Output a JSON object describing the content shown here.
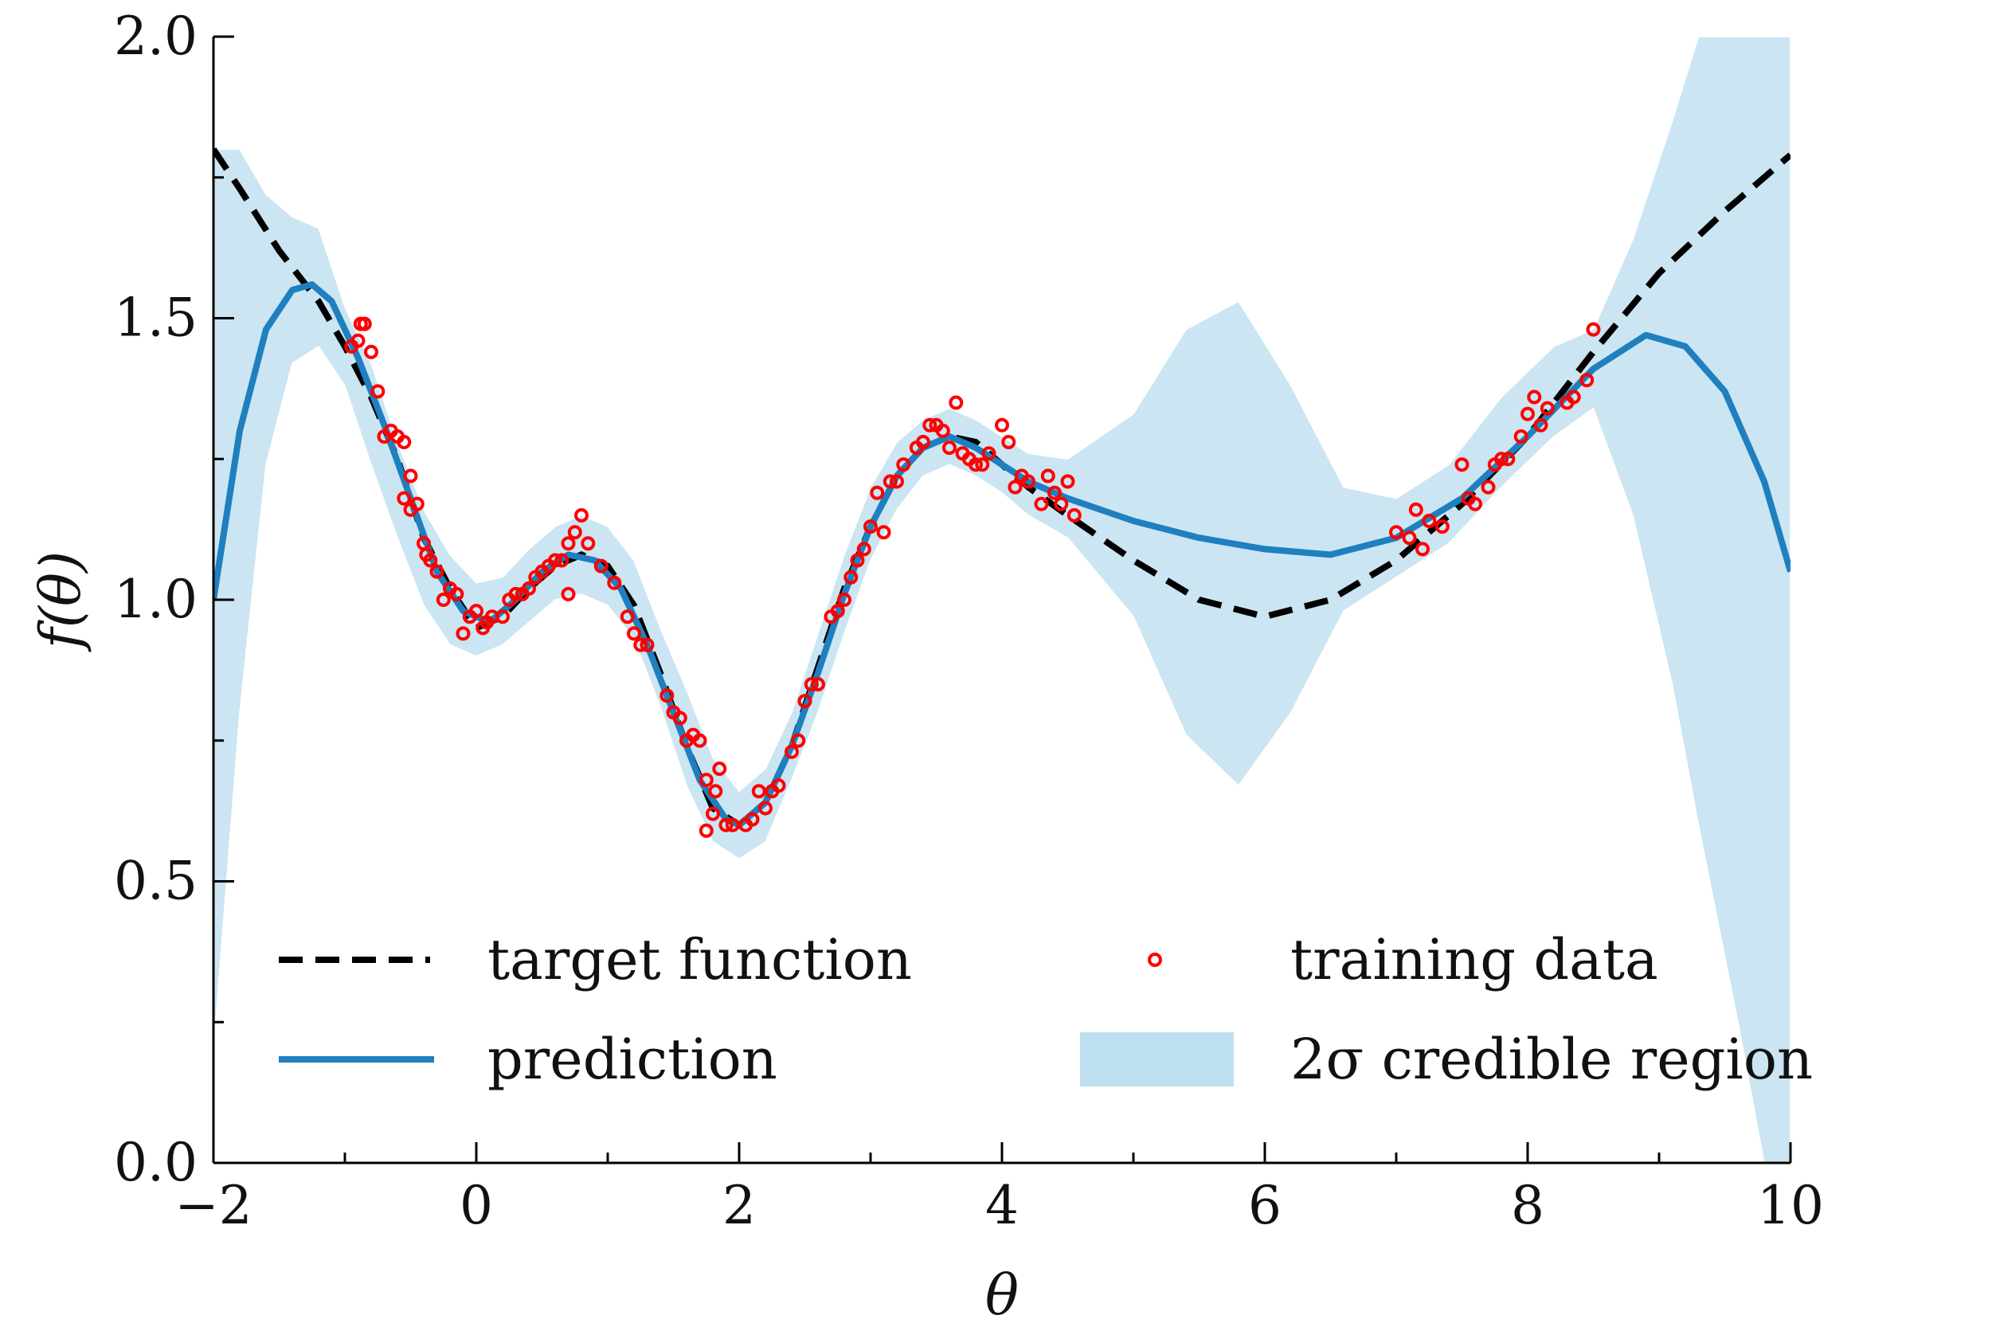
{
  "chart_data": {
    "type": "line",
    "title": "",
    "xlabel": "θ",
    "ylabel": "f(θ)",
    "xlim": [
      -2,
      10
    ],
    "ylim": [
      0,
      2
    ],
    "xticks": [
      -2,
      0,
      2,
      4,
      6,
      8,
      10
    ],
    "xtick_labels": [
      "−2",
      "0",
      "2",
      "4",
      "6",
      "8",
      "10"
    ],
    "yticks": [
      0,
      0.5,
      1,
      1.5,
      2
    ],
    "ytick_labels": [
      "0.0",
      "0.5",
      "1.0",
      "1.5",
      "2.0"
    ],
    "grid": false,
    "legend_position": "lower-center",
    "colors": {
      "target": "#000000",
      "prediction": "#1f7fbf",
      "training": "#ff0000",
      "band": "#a8d4ea"
    },
    "series": [
      {
        "name": "target function",
        "style": "dashed",
        "points": [
          [
            -2.0,
            1.8
          ],
          [
            -1.8,
            1.73
          ],
          [
            -1.5,
            1.62
          ],
          [
            -1.2,
            1.53
          ],
          [
            -1.0,
            1.45
          ],
          [
            -0.8,
            1.36
          ],
          [
            -0.6,
            1.25
          ],
          [
            -0.4,
            1.11
          ],
          [
            -0.2,
            1.02
          ],
          [
            0.0,
            0.95
          ],
          [
            0.2,
            0.97
          ],
          [
            0.4,
            1.02
          ],
          [
            0.6,
            1.06
          ],
          [
            0.8,
            1.08
          ],
          [
            1.0,
            1.06
          ],
          [
            1.2,
            0.99
          ],
          [
            1.4,
            0.87
          ],
          [
            1.6,
            0.74
          ],
          [
            1.8,
            0.63
          ],
          [
            2.0,
            0.6
          ],
          [
            2.2,
            0.64
          ],
          [
            2.4,
            0.74
          ],
          [
            2.6,
            0.88
          ],
          [
            2.8,
            1.02
          ],
          [
            3.0,
            1.13
          ],
          [
            3.2,
            1.22
          ],
          [
            3.4,
            1.27
          ],
          [
            3.6,
            1.29
          ],
          [
            3.8,
            1.28
          ],
          [
            4.0,
            1.24
          ],
          [
            4.2,
            1.2
          ],
          [
            4.5,
            1.15
          ],
          [
            5.0,
            1.07
          ],
          [
            5.5,
            1.0
          ],
          [
            6.0,
            0.97
          ],
          [
            6.5,
            1.0
          ],
          [
            7.0,
            1.07
          ],
          [
            7.5,
            1.17
          ],
          [
            8.0,
            1.29
          ],
          [
            8.5,
            1.44
          ],
          [
            9.0,
            1.58
          ],
          [
            9.5,
            1.69
          ],
          [
            10.0,
            1.79
          ]
        ]
      },
      {
        "name": "prediction",
        "style": "solid",
        "points": [
          [
            -2.0,
            1.0
          ],
          [
            -1.8,
            1.3
          ],
          [
            -1.6,
            1.48
          ],
          [
            -1.4,
            1.55
          ],
          [
            -1.25,
            1.56
          ],
          [
            -1.1,
            1.53
          ],
          [
            -0.9,
            1.43
          ],
          [
            -0.7,
            1.31
          ],
          [
            -0.5,
            1.18
          ],
          [
            -0.3,
            1.05
          ],
          [
            -0.1,
            0.98
          ],
          [
            0.1,
            0.96
          ],
          [
            0.3,
            1.0
          ],
          [
            0.5,
            1.05
          ],
          [
            0.7,
            1.08
          ],
          [
            0.9,
            1.07
          ],
          [
            1.1,
            1.02
          ],
          [
            1.3,
            0.92
          ],
          [
            1.5,
            0.8
          ],
          [
            1.7,
            0.68
          ],
          [
            1.9,
            0.61
          ],
          [
            2.0,
            0.6
          ],
          [
            2.2,
            0.64
          ],
          [
            2.4,
            0.74
          ],
          [
            2.6,
            0.87
          ],
          [
            2.8,
            1.01
          ],
          [
            3.0,
            1.13
          ],
          [
            3.2,
            1.22
          ],
          [
            3.4,
            1.27
          ],
          [
            3.6,
            1.29
          ],
          [
            3.8,
            1.27
          ],
          [
            4.0,
            1.24
          ],
          [
            4.2,
            1.21
          ],
          [
            4.5,
            1.18
          ],
          [
            5.0,
            1.14
          ],
          [
            5.5,
            1.11
          ],
          [
            6.0,
            1.09
          ],
          [
            6.5,
            1.08
          ],
          [
            7.0,
            1.11
          ],
          [
            7.5,
            1.18
          ],
          [
            8.0,
            1.29
          ],
          [
            8.5,
            1.41
          ],
          [
            8.9,
            1.47
          ],
          [
            9.2,
            1.45
          ],
          [
            9.5,
            1.37
          ],
          [
            9.8,
            1.21
          ],
          [
            10.0,
            1.05
          ]
        ]
      }
    ],
    "credible_region": {
      "name": "2σ credible region",
      "points": [
        [
          -2.0,
          0.2,
          1.8
        ],
        [
          -1.8,
          0.8,
          1.8
        ],
        [
          -1.6,
          1.24,
          1.72
        ],
        [
          -1.4,
          1.42,
          1.68
        ],
        [
          -1.2,
          1.45,
          1.66
        ],
        [
          -1.0,
          1.38,
          1.52
        ],
        [
          -0.8,
          1.24,
          1.42
        ],
        [
          -0.6,
          1.11,
          1.28
        ],
        [
          -0.4,
          0.99,
          1.16
        ],
        [
          -0.2,
          0.92,
          1.08
        ],
        [
          0.0,
          0.9,
          1.03
        ],
        [
          0.2,
          0.92,
          1.04
        ],
        [
          0.4,
          0.96,
          1.09
        ],
        [
          0.6,
          1.0,
          1.13
        ],
        [
          0.8,
          1.01,
          1.15
        ],
        [
          1.0,
          0.99,
          1.13
        ],
        [
          1.2,
          0.93,
          1.07
        ],
        [
          1.4,
          0.81,
          0.95
        ],
        [
          1.6,
          0.67,
          0.84
        ],
        [
          1.8,
          0.57,
          0.72
        ],
        [
          2.0,
          0.54,
          0.66
        ],
        [
          2.2,
          0.57,
          0.7
        ],
        [
          2.4,
          0.68,
          0.8
        ],
        [
          2.6,
          0.8,
          0.94
        ],
        [
          2.8,
          0.94,
          1.08
        ],
        [
          3.0,
          1.07,
          1.2
        ],
        [
          3.2,
          1.16,
          1.28
        ],
        [
          3.4,
          1.22,
          1.32
        ],
        [
          3.6,
          1.24,
          1.34
        ],
        [
          3.8,
          1.22,
          1.32
        ],
        [
          4.0,
          1.19,
          1.29
        ],
        [
          4.2,
          1.15,
          1.26
        ],
        [
          4.5,
          1.11,
          1.25
        ],
        [
          5.0,
          0.97,
          1.33
        ],
        [
          5.4,
          0.76,
          1.48
        ],
        [
          5.8,
          0.67,
          1.53
        ],
        [
          6.2,
          0.8,
          1.38
        ],
        [
          6.6,
          0.98,
          1.2
        ],
        [
          7.0,
          1.04,
          1.18
        ],
        [
          7.4,
          1.1,
          1.24
        ],
        [
          7.8,
          1.2,
          1.36
        ],
        [
          8.2,
          1.29,
          1.45
        ],
        [
          8.5,
          1.34,
          1.48
        ],
        [
          8.8,
          1.15,
          1.64
        ],
        [
          9.1,
          0.85,
          1.85
        ],
        [
          9.3,
          0.6,
          2.0
        ],
        [
          9.6,
          0.25,
          2.0
        ],
        [
          9.8,
          0.0,
          2.0
        ],
        [
          10.0,
          0.0,
          2.0
        ]
      ]
    },
    "training_data": [
      [
        -0.95,
        1.45
      ],
      [
        -0.9,
        1.46
      ],
      [
        -0.88,
        1.49
      ],
      [
        -0.85,
        1.49
      ],
      [
        -0.8,
        1.44
      ],
      [
        -0.75,
        1.37
      ],
      [
        -0.7,
        1.29
      ],
      [
        -0.65,
        1.3
      ],
      [
        -0.6,
        1.29
      ],
      [
        -0.55,
        1.28
      ],
      [
        -0.55,
        1.18
      ],
      [
        -0.5,
        1.22
      ],
      [
        -0.5,
        1.16
      ],
      [
        -0.45,
        1.17
      ],
      [
        -0.4,
        1.1
      ],
      [
        -0.38,
        1.08
      ],
      [
        -0.35,
        1.07
      ],
      [
        -0.3,
        1.05
      ],
      [
        -0.25,
        1.0
      ],
      [
        -0.2,
        1.02
      ],
      [
        -0.15,
        1.01
      ],
      [
        -0.1,
        0.94
      ],
      [
        -0.05,
        0.97
      ],
      [
        0.0,
        0.98
      ],
      [
        0.05,
        0.95
      ],
      [
        0.08,
        0.96
      ],
      [
        0.12,
        0.97
      ],
      [
        0.2,
        0.97
      ],
      [
        0.25,
        1.0
      ],
      [
        0.3,
        1.01
      ],
      [
        0.35,
        1.01
      ],
      [
        0.4,
        1.02
      ],
      [
        0.45,
        1.04
      ],
      [
        0.5,
        1.05
      ],
      [
        0.55,
        1.06
      ],
      [
        0.6,
        1.07
      ],
      [
        0.65,
        1.07
      ],
      [
        0.7,
        1.1
      ],
      [
        0.7,
        1.01
      ],
      [
        0.75,
        1.12
      ],
      [
        0.8,
        1.15
      ],
      [
        0.85,
        1.1
      ],
      [
        0.95,
        1.06
      ],
      [
        1.05,
        1.03
      ],
      [
        1.15,
        0.97
      ],
      [
        1.2,
        0.94
      ],
      [
        1.25,
        0.92
      ],
      [
        1.3,
        0.92
      ],
      [
        1.45,
        0.83
      ],
      [
        1.5,
        0.8
      ],
      [
        1.55,
        0.79
      ],
      [
        1.6,
        0.75
      ],
      [
        1.65,
        0.76
      ],
      [
        1.7,
        0.75
      ],
      [
        1.75,
        0.68
      ],
      [
        1.75,
        0.59
      ],
      [
        1.8,
        0.62
      ],
      [
        1.82,
        0.66
      ],
      [
        1.85,
        0.7
      ],
      [
        1.9,
        0.6
      ],
      [
        1.95,
        0.6
      ],
      [
        2.05,
        0.6
      ],
      [
        2.1,
        0.61
      ],
      [
        2.15,
        0.66
      ],
      [
        2.2,
        0.63
      ],
      [
        2.25,
        0.66
      ],
      [
        2.3,
        0.67
      ],
      [
        2.4,
        0.73
      ],
      [
        2.45,
        0.75
      ],
      [
        2.5,
        0.82
      ],
      [
        2.55,
        0.85
      ],
      [
        2.6,
        0.85
      ],
      [
        2.7,
        0.97
      ],
      [
        2.75,
        0.98
      ],
      [
        2.8,
        1.0
      ],
      [
        2.85,
        1.04
      ],
      [
        2.9,
        1.07
      ],
      [
        2.95,
        1.09
      ],
      [
        3.0,
        1.13
      ],
      [
        3.05,
        1.19
      ],
      [
        3.1,
        1.12
      ],
      [
        3.15,
        1.21
      ],
      [
        3.2,
        1.21
      ],
      [
        3.25,
        1.24
      ],
      [
        3.35,
        1.27
      ],
      [
        3.4,
        1.28
      ],
      [
        3.45,
        1.31
      ],
      [
        3.5,
        1.31
      ],
      [
        3.55,
        1.3
      ],
      [
        3.6,
        1.27
      ],
      [
        3.65,
        1.35
      ],
      [
        3.7,
        1.26
      ],
      [
        3.75,
        1.25
      ],
      [
        3.8,
        1.24
      ],
      [
        3.85,
        1.24
      ],
      [
        3.9,
        1.26
      ],
      [
        4.0,
        1.31
      ],
      [
        4.05,
        1.28
      ],
      [
        4.1,
        1.2
      ],
      [
        4.15,
        1.22
      ],
      [
        4.2,
        1.21
      ],
      [
        4.3,
        1.17
      ],
      [
        4.35,
        1.22
      ],
      [
        4.4,
        1.19
      ],
      [
        4.45,
        1.17
      ],
      [
        4.5,
        1.21
      ],
      [
        4.55,
        1.15
      ],
      [
        7.0,
        1.12
      ],
      [
        7.1,
        1.11
      ],
      [
        7.15,
        1.16
      ],
      [
        7.2,
        1.09
      ],
      [
        7.25,
        1.14
      ],
      [
        7.35,
        1.13
      ],
      [
        7.5,
        1.24
      ],
      [
        7.55,
        1.18
      ],
      [
        7.6,
        1.17
      ],
      [
        7.7,
        1.2
      ],
      [
        7.75,
        1.24
      ],
      [
        7.8,
        1.25
      ],
      [
        7.85,
        1.25
      ],
      [
        7.95,
        1.29
      ],
      [
        8.0,
        1.33
      ],
      [
        8.05,
        1.36
      ],
      [
        8.1,
        1.31
      ],
      [
        8.15,
        1.34
      ],
      [
        8.3,
        1.35
      ],
      [
        8.35,
        1.36
      ],
      [
        8.45,
        1.39
      ],
      [
        8.5,
        1.48
      ]
    ],
    "legend": [
      {
        "label": "target function",
        "key": "target"
      },
      {
        "label": "prediction",
        "key": "prediction"
      },
      {
        "label": "training data",
        "key": "training"
      },
      {
        "label": "2σ credible region",
        "key": "band"
      }
    ]
  }
}
